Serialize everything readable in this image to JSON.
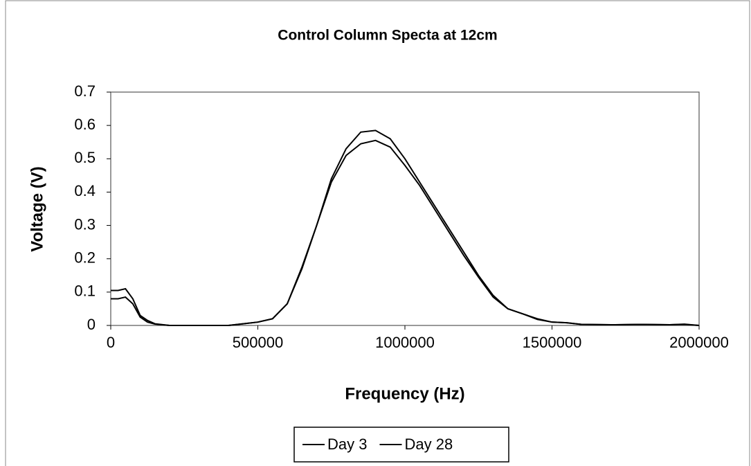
{
  "chart_data": {
    "type": "line",
    "title": "Control Column Specta at 12cm",
    "x_label": "Frequency (Hz)",
    "y_label": "Voltage (V)",
    "x": [
      0,
      25000,
      50000,
      75000,
      100000,
      125000,
      150000,
      200000,
      300000,
      400000,
      450000,
      500000,
      550000,
      600000,
      650000,
      700000,
      750000,
      800000,
      850000,
      900000,
      950000,
      1000000,
      1050000,
      1100000,
      1150000,
      1200000,
      1250000,
      1300000,
      1350000,
      1400000,
      1450000,
      1500000,
      1550000,
      1600000,
      1700000,
      1800000,
      1900000,
      1950000,
      2000000
    ],
    "series": [
      {
        "name": "Day 3",
        "color": "#000000",
        "values": [
          0.105,
          0.105,
          0.11,
          0.08,
          0.03,
          0.015,
          0.005,
          0,
          0,
          0,
          0.005,
          0.01,
          0.02,
          0.065,
          0.17,
          0.3,
          0.44,
          0.53,
          0.58,
          0.585,
          0.56,
          0.5,
          0.43,
          0.36,
          0.29,
          0.22,
          0.15,
          0.09,
          0.05,
          0.035,
          0.02,
          0.01,
          0.008,
          0.003,
          0.002,
          0.003,
          0.002,
          0.003,
          0
        ]
      },
      {
        "name": "Day 28",
        "color": "#000000",
        "values": [
          0.08,
          0.08,
          0.085,
          0.065,
          0.025,
          0.01,
          0.004,
          0,
          0,
          0,
          0.005,
          0.01,
          0.02,
          0.065,
          0.175,
          0.3,
          0.43,
          0.51,
          0.545,
          0.555,
          0.535,
          0.48,
          0.42,
          0.35,
          0.28,
          0.21,
          0.145,
          0.085,
          0.05,
          0.035,
          0.018,
          0.01,
          0.008,
          0.003,
          0.002,
          0.003,
          0.002,
          0.004,
          0
        ]
      }
    ],
    "xlim": [
      0,
      2000000
    ],
    "xticks": [
      0,
      500000,
      1000000,
      1500000,
      2000000
    ],
    "ylim": [
      0,
      0.7
    ],
    "yticks": [
      0,
      0.1,
      0.2,
      0.3,
      0.4,
      0.5,
      0.6,
      0.7
    ],
    "grid": false,
    "legend": "bottom"
  }
}
